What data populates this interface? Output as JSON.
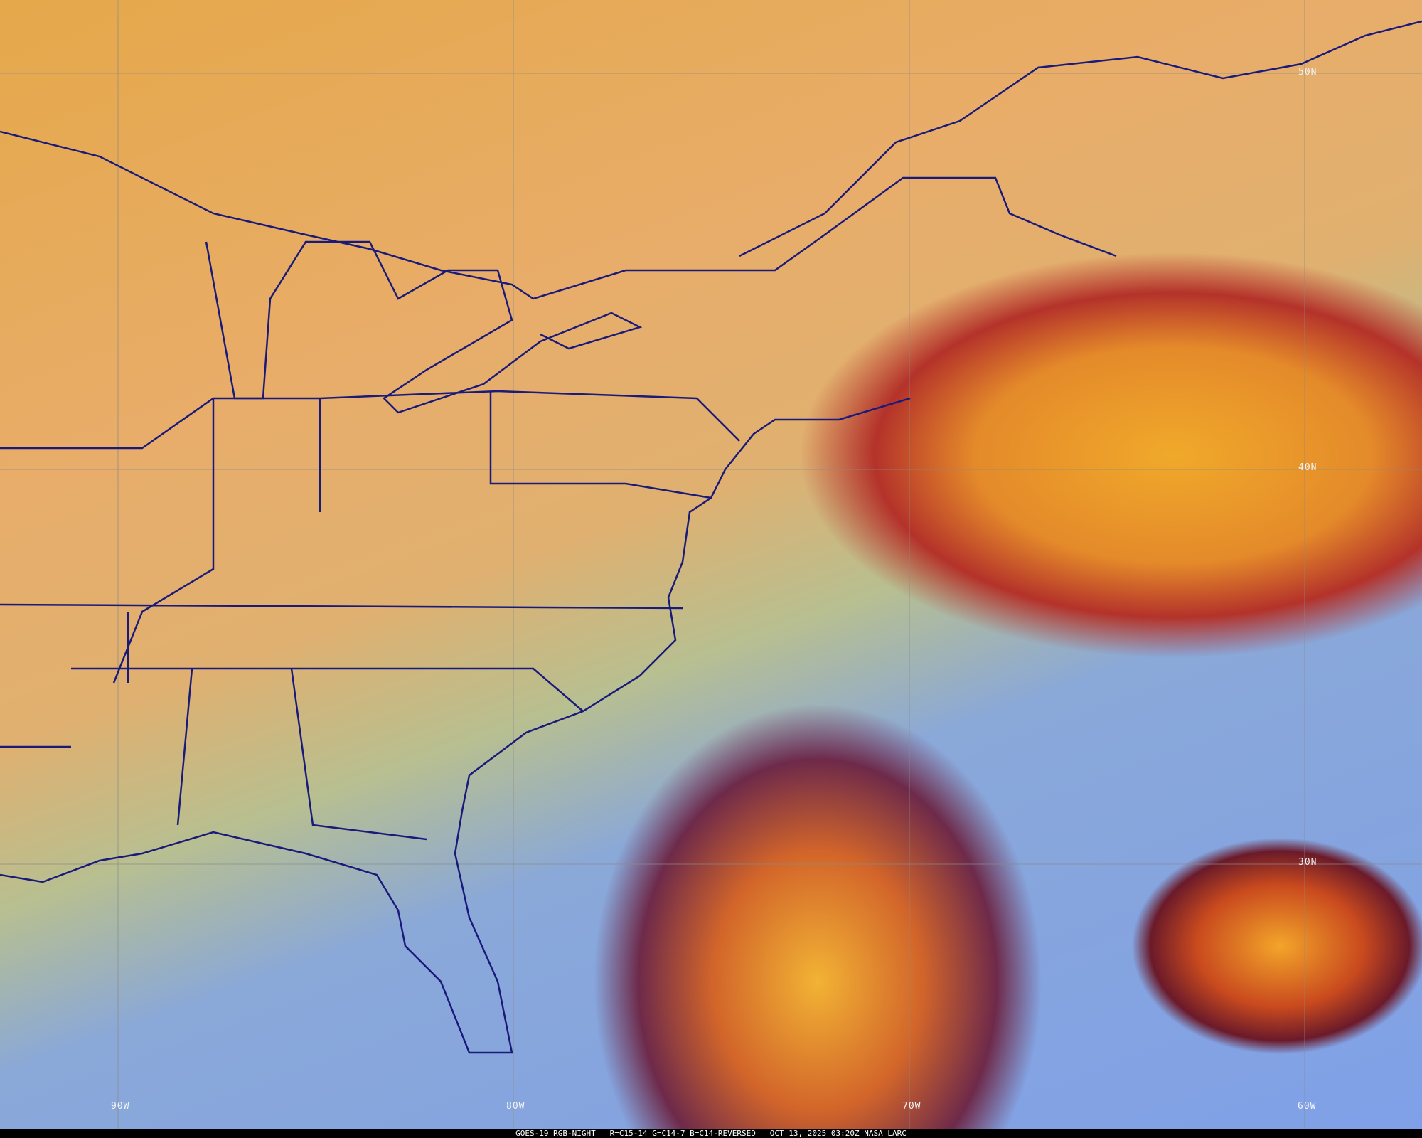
{
  "map": {
    "latitude_labels": [
      "50N",
      "40N",
      "30N"
    ],
    "longitude_labels": [
      "90W",
      "80W",
      "70W",
      "60W"
    ],
    "boundary_color": "#1a1a7a",
    "gridline_color": "#8a8a8a"
  },
  "caption": {
    "product": "GOES-19 RGB-NIGHT",
    "recipe": "R=C15-14 G=C14-7 B=C14-REVERSED",
    "timestamp": "OCT 13, 2025 03:20Z",
    "source": "NASA LARC"
  }
}
